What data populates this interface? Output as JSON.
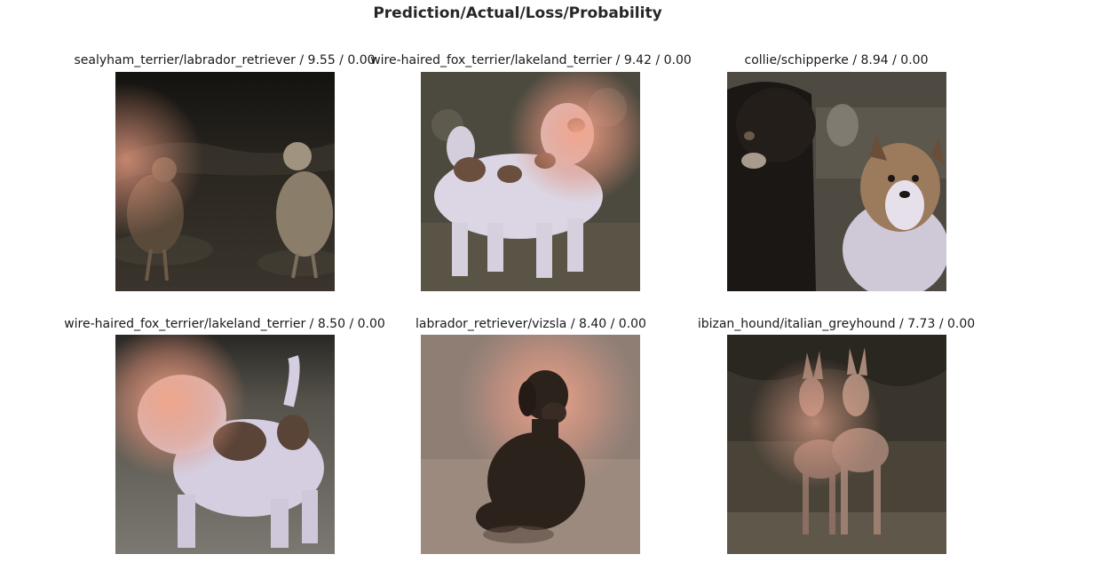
{
  "figure": {
    "title": "Prediction/Actual/Loss/Probability"
  },
  "panels": [
    {
      "label": "sealyham_terrier/labrador_retriever / 9.55 / 0.00",
      "subject": "two chickens in dark yard with heatmap overlay"
    },
    {
      "label": "wire-haired_fox_terrier/lakeland_terrier / 9.42 / 0.00",
      "subject": "white and brown wire-haired terrier with heatmap overlay"
    },
    {
      "label": "collie/schipperke / 8.94 / 0.00",
      "subject": "black dog and sable collie"
    },
    {
      "label": "wire-haired_fox_terrier/lakeland_terrier / 8.50 / 0.00",
      "subject": "wire-haired terrier from behind with heatmap overlay on head"
    },
    {
      "label": "labrador_retriever/vizsla / 8.40 / 0.00",
      "subject": "dark brown dog sitting with heatmap halo"
    },
    {
      "label": "ibizan_hound/italian_greyhound / 7.73 / 0.00",
      "subject": "two slender hounds standing in grass"
    }
  ]
}
